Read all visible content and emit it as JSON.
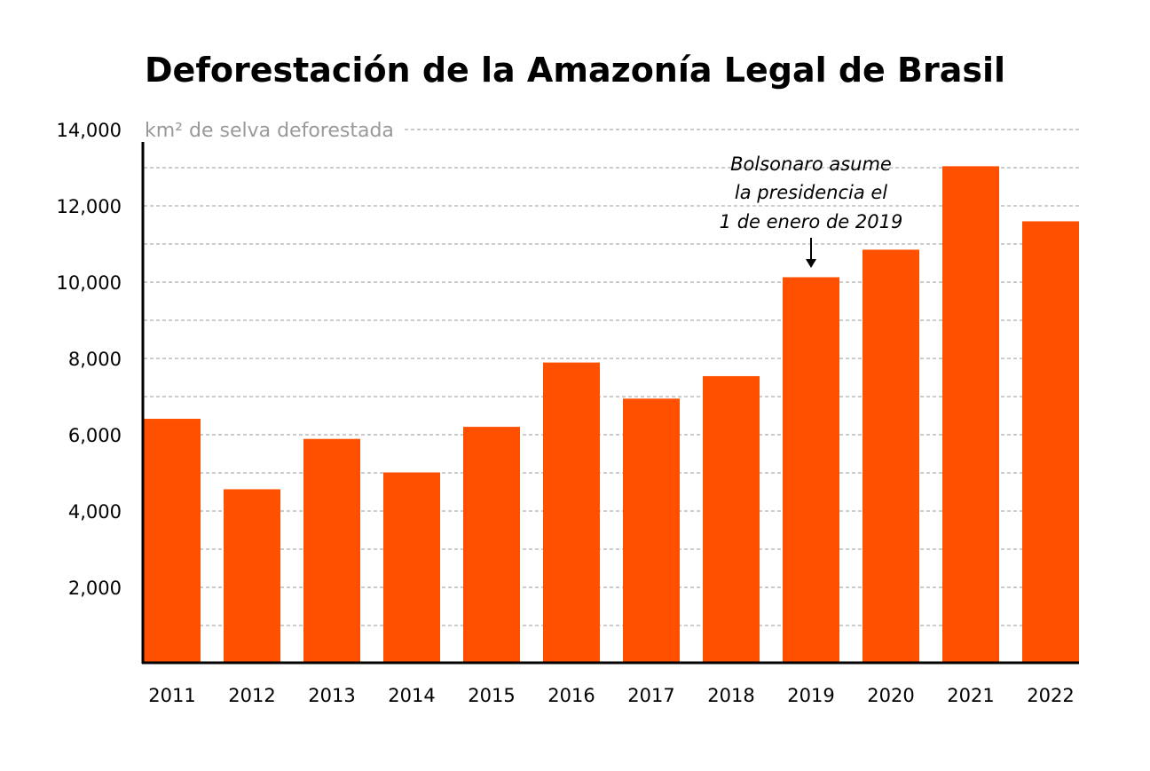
{
  "chart_data": {
    "type": "bar",
    "title": "Deforestación de la Amazonía Legal de Brasil",
    "ylabel": "km² de selva deforestada",
    "xlabel": "",
    "categories": [
      "2011",
      "2012",
      "2013",
      "2014",
      "2015",
      "2016",
      "2017",
      "2018",
      "2019",
      "2020",
      "2021",
      "2022"
    ],
    "values": [
      6418,
      4571,
      5891,
      5012,
      6207,
      7893,
      6947,
      7536,
      10129,
      10851,
      13038,
      11594
    ],
    "ylim": [
      0,
      14000
    ],
    "yticks": [
      2000,
      4000,
      6000,
      8000,
      10000,
      12000,
      14000
    ],
    "ytick_labels": [
      "2,000",
      "4,000",
      "6,000",
      "8,000",
      "10,000",
      "12,000",
      "14,000"
    ],
    "grid": true,
    "bar_color": "#ff5000",
    "annotation": {
      "category": "2019",
      "lines": [
        "Bolsonaro asume",
        "la presidencia el",
        "1 de enero de 2019"
      ]
    }
  }
}
